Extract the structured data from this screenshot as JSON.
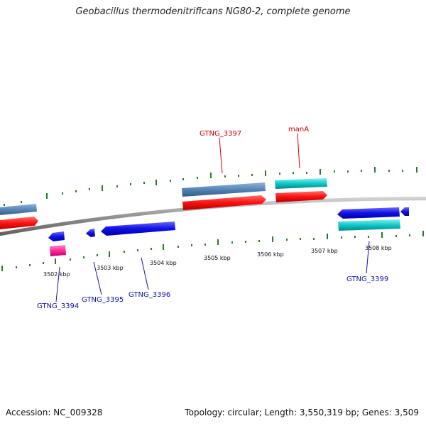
{
  "title": "Geobacillus thermodenitrificans NG80-2, complete genome",
  "footer": {
    "accession": "Accession: NC_009328",
    "summary": "Topology: circular; Length: 3,550,319 bp; Genes: 3,509"
  },
  "colors": {
    "backbone": "#8a8a8a",
    "tick": "#2a7a2a",
    "steel": "#5585b5",
    "red": "#ff1010",
    "cyan": "#10c8c8",
    "blue": "#1010e8",
    "pink": "#ff2a9a",
    "label_red": "#cc0000",
    "label_blue": "#1010aa"
  },
  "scale": {
    "labels": [
      "3502 kbp",
      "3503 kbp",
      "3504 kbp",
      "3505 kbp",
      "3506 kbp",
      "3507 kbp",
      "3508 kbp"
    ]
  },
  "gene_labels": {
    "gtng_3397": "GTNG_3397",
    "mana": "manA",
    "gtng_3394": "GTNG_3394",
    "gtng_3395": "GTNG_3395",
    "gtng_3396": "GTNG_3396",
    "gtng_3399": "GTNG_3399"
  }
}
